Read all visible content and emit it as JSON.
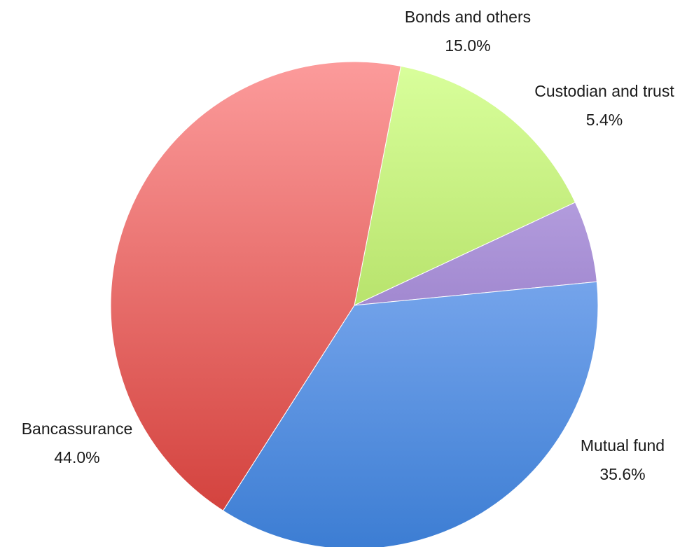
{
  "chart_data": {
    "type": "pie",
    "title": "",
    "start_angle_deg": -79,
    "direction": "clockwise",
    "slices": [
      {
        "label": "Bonds and others",
        "value": 15.0,
        "value_label": "15.0%",
        "color_light": "#d9ff9c",
        "color_dark": "#97c73d"
      },
      {
        "label": "Custodian and trust",
        "value": 5.4,
        "value_label": "5.4%",
        "color_light": "#c9b6ee",
        "color_dark": "#7a5bb2"
      },
      {
        "label": "Mutual fund",
        "value": 35.6,
        "value_label": "35.6%",
        "color_light": "#a3c4ff",
        "color_dark": "#3c7dd3"
      },
      {
        "label": "Bancassurance",
        "value": 44.0,
        "value_label": "44.0%",
        "color_light": "#fc9b9b",
        "color_dark": "#d03b36"
      }
    ]
  }
}
